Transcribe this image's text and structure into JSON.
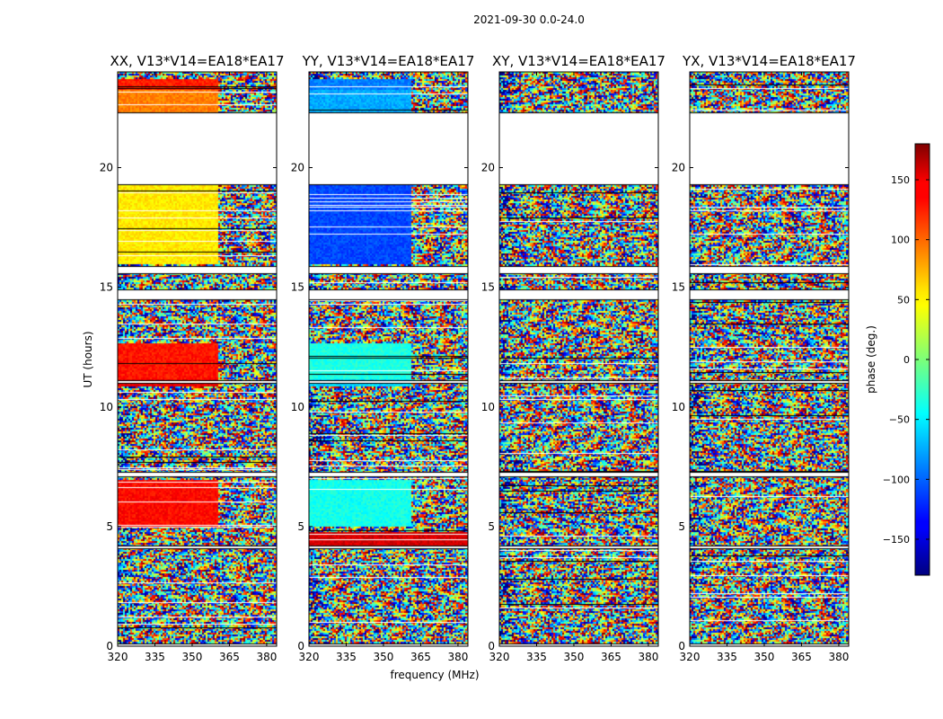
{
  "figure": {
    "suptitle": "2021-09-30 0.0-24.0",
    "xlabel": "frequency (MHz)",
    "ylabel": "UT (hours)",
    "colorbar_label": "phase (deg.)",
    "colorbar_ticks": [
      "150",
      "100",
      "50",
      "0",
      "−50",
      "−100",
      "−150"
    ]
  },
  "chart_data": [
    {
      "type": "heatmap",
      "title": "XX, V13*V14=EA18*EA17",
      "xlabel": "",
      "ylabel": "UT (hours)",
      "x_ticks": [
        "320",
        "335",
        "350",
        "365",
        "380"
      ],
      "y_ticks": [
        "0",
        "5",
        "10",
        "15",
        "20"
      ],
      "xlim": [
        320,
        384
      ],
      "ylim": [
        0,
        24
      ],
      "coherent_regions": [
        {
          "t0": 16.0,
          "t1": 19.3,
          "f0": 320,
          "f1": 360,
          "phase": 52
        },
        {
          "t0": 11.2,
          "t1": 12.7,
          "f0": 320,
          "f1": 360,
          "phase": 128
        },
        {
          "t0": 10.9,
          "t1": 11.2,
          "f0": 320,
          "f1": 360,
          "phase": 140
        },
        {
          "t0": 5.0,
          "t1": 7.0,
          "f0": 320,
          "f1": 360,
          "phase": 132
        },
        {
          "t0": 22.3,
          "t1": 23.3,
          "f0": 320,
          "f1": 360,
          "phase": 90
        },
        {
          "t0": 23.3,
          "t1": 23.7,
          "f0": 320,
          "f1": 360,
          "phase": 125
        }
      ]
    },
    {
      "type": "heatmap",
      "title": "YY, V13*V14=EA18*EA17",
      "xlabel": "frequency (MHz)",
      "ylabel": "",
      "x_ticks": [
        "320",
        "335",
        "350",
        "365",
        "380"
      ],
      "y_ticks": [
        "0",
        "5",
        "10",
        "15",
        "20"
      ],
      "xlim": [
        320,
        384
      ],
      "ylim": [
        0,
        24
      ],
      "coherent_regions": [
        {
          "t0": 16.0,
          "t1": 19.3,
          "f0": 320,
          "f1": 361,
          "phase": -110
        },
        {
          "t0": 11.2,
          "t1": 12.7,
          "f0": 320,
          "f1": 361,
          "phase": -35
        },
        {
          "t0": 10.9,
          "t1": 11.2,
          "f0": 320,
          "f1": 361,
          "phase": -60
        },
        {
          "t0": 5.0,
          "t1": 7.0,
          "f0": 320,
          "f1": 361,
          "phase": -38
        },
        {
          "t0": 4.2,
          "t1": 4.8,
          "f0": 320,
          "f1": 384,
          "phase": 150
        },
        {
          "t0": 22.3,
          "t1": 23.3,
          "f0": 320,
          "f1": 361,
          "phase": -75
        },
        {
          "t0": 23.3,
          "t1": 23.7,
          "f0": 320,
          "f1": 361,
          "phase": -90
        }
      ]
    },
    {
      "type": "heatmap",
      "title": "XY, V13*V14=EA18*EA17",
      "xlabel": "",
      "ylabel": "",
      "x_ticks": [
        "320",
        "335",
        "350",
        "365",
        "380"
      ],
      "y_ticks": [
        "0",
        "5",
        "10",
        "15",
        "20"
      ],
      "xlim": [
        320,
        384
      ],
      "ylim": [
        0,
        24
      ],
      "coherent_regions": []
    },
    {
      "type": "heatmap",
      "title": "YX, V13*V14=EA18*EA17",
      "xlabel": "",
      "ylabel": "",
      "x_ticks": [
        "320",
        "335",
        "350",
        "365",
        "380"
      ],
      "y_ticks": [
        "0",
        "5",
        "10",
        "15",
        "20"
      ],
      "xlim": [
        320,
        384
      ],
      "ylim": [
        0,
        24
      ],
      "coherent_regions": []
    },
    {
      "type": "colorbar",
      "colormap": "jet",
      "vmin": -180,
      "vmax": 180,
      "ticks": [
        150,
        100,
        50,
        0,
        -50,
        -100,
        -150
      ],
      "label": "phase (deg.)"
    }
  ],
  "flagged_ut_ranges": [
    [
      19.3,
      22.3
    ],
    [
      14.5,
      14.9
    ],
    [
      15.6,
      15.9
    ],
    [
      7.1,
      7.3
    ],
    [
      11.0,
      11.1
    ],
    [
      4.1,
      4.2
    ],
    [
      0.0,
      0.1
    ]
  ],
  "colors": {
    "background": "#ffffff",
    "axes": "#000000",
    "flagged": "#ffffff"
  }
}
